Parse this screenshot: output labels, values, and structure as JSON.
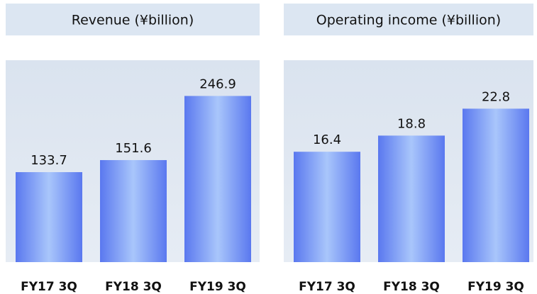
{
  "chart_data": [
    {
      "type": "bar",
      "title": "Revenue (¥billion)",
      "categories": [
        "FY17 3Q",
        "FY18 3Q",
        "FY19 3Q"
      ],
      "values": [
        133.7,
        151.6,
        246.9
      ],
      "ylim": [
        0,
        300
      ]
    },
    {
      "type": "bar",
      "title": "Operating income (¥billion)",
      "categories": [
        "FY17 3Q",
        "FY18 3Q",
        "FY19 3Q"
      ],
      "values": [
        16.4,
        18.8,
        22.8
      ],
      "ylim": [
        0,
        30
      ]
    }
  ]
}
